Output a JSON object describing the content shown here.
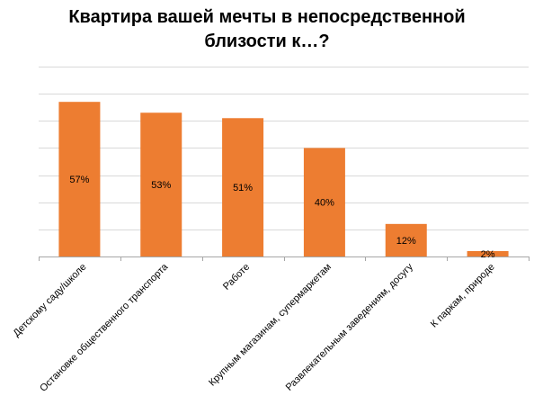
{
  "chart_data": {
    "type": "bar",
    "title_lines": [
      "Квартира вашей мечты в непосредственной",
      "близости к…?"
    ],
    "categories": [
      "Детскому саду/школе",
      "Остановке общественного транспорта",
      "Работе",
      "Крупным магазинам, супермаркетам",
      "Развлекательным заведениям, досугу",
      "К паркам, природе"
    ],
    "values": [
      57,
      53,
      51,
      40,
      12,
      2
    ],
    "value_labels": [
      "57%",
      "53%",
      "51%",
      "40%",
      "12%",
      "2%"
    ],
    "ylim": [
      0,
      70
    ],
    "y_tick_step": 10,
    "grid": true,
    "legend": "none",
    "colors": {
      "bar": "#ED7D31",
      "grid": "#D9D9D9",
      "axis": "#A6A6A6"
    }
  }
}
